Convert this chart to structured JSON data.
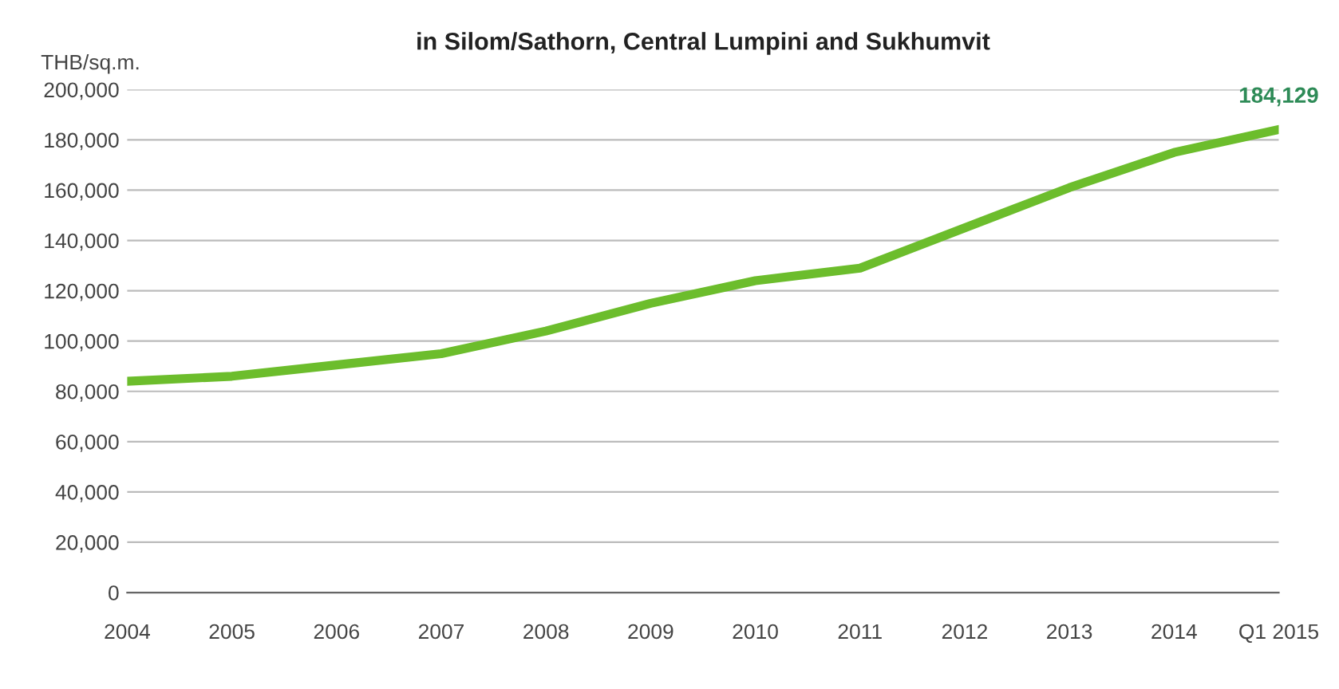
{
  "chart_data": {
    "type": "line",
    "title": "in Silom/Sathorn, Central Lumpini and Sukhumvit",
    "ylabel": "THB/sq.m.",
    "categories": [
      "2004",
      "2005",
      "2006",
      "2007",
      "2008",
      "2009",
      "2010",
      "2011",
      "2012",
      "2013",
      "2014",
      "Q1 2015"
    ],
    "series": [
      {
        "color": "#6cbd2c",
        "values": [
          84000,
          86000,
          90500,
          95000,
          104000,
          115000,
          124000,
          129000,
          145000,
          161000,
          175000,
          184129
        ],
        "value_labels": [
          null,
          null,
          null,
          null,
          null,
          null,
          null,
          null,
          null,
          null,
          null,
          "184,129"
        ]
      }
    ],
    "ylim": [
      0,
      200000
    ],
    "yticks": [
      {
        "value": 0,
        "label": "0"
      },
      {
        "value": 20000,
        "label": "20,000"
      },
      {
        "value": 40000,
        "label": "40,000"
      },
      {
        "value": 60000,
        "label": "60,000"
      },
      {
        "value": 80000,
        "label": "80,000"
      },
      {
        "value": 100000,
        "label": "100,000"
      },
      {
        "value": 120000,
        "label": "120,000"
      },
      {
        "value": 140000,
        "label": "140,000"
      },
      {
        "value": 160000,
        "label": "160,000"
      },
      {
        "value": 180000,
        "label": "180,000"
      },
      {
        "value": 200000,
        "label": "200,000"
      }
    ],
    "grid": "y",
    "legend": false,
    "marker": "none",
    "line_style": "solid"
  }
}
